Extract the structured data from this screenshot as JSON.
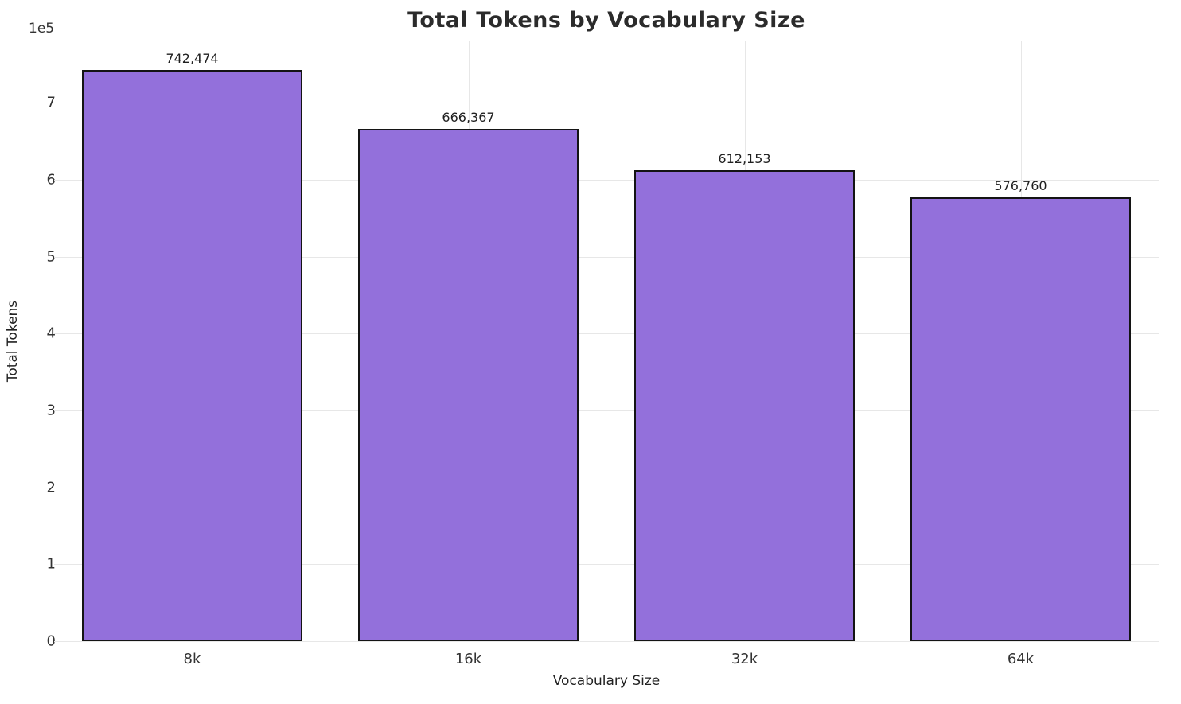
{
  "chart_data": {
    "type": "bar",
    "title": "Total Tokens by Vocabulary Size",
    "xlabel": "Vocabulary Size",
    "ylabel": "Total Tokens",
    "y_offset_text": "1e5",
    "categories": [
      "8k",
      "16k",
      "32k",
      "64k"
    ],
    "values": [
      742474,
      666367,
      612153,
      576760
    ],
    "value_labels": [
      "742,474",
      "666,367",
      "612,153",
      "576,760"
    ],
    "ylim": [
      0,
      780000
    ],
    "ytick_step": 100000,
    "ytick_labels": [
      "0",
      "1",
      "2",
      "3",
      "4",
      "5",
      "6",
      "7"
    ],
    "grid": true,
    "legend": "none",
    "bar_color": "#9370DB",
    "bar_edge_color": "#141414",
    "grid_color": "#e7e7e7",
    "bar_width_fraction": 0.8
  }
}
